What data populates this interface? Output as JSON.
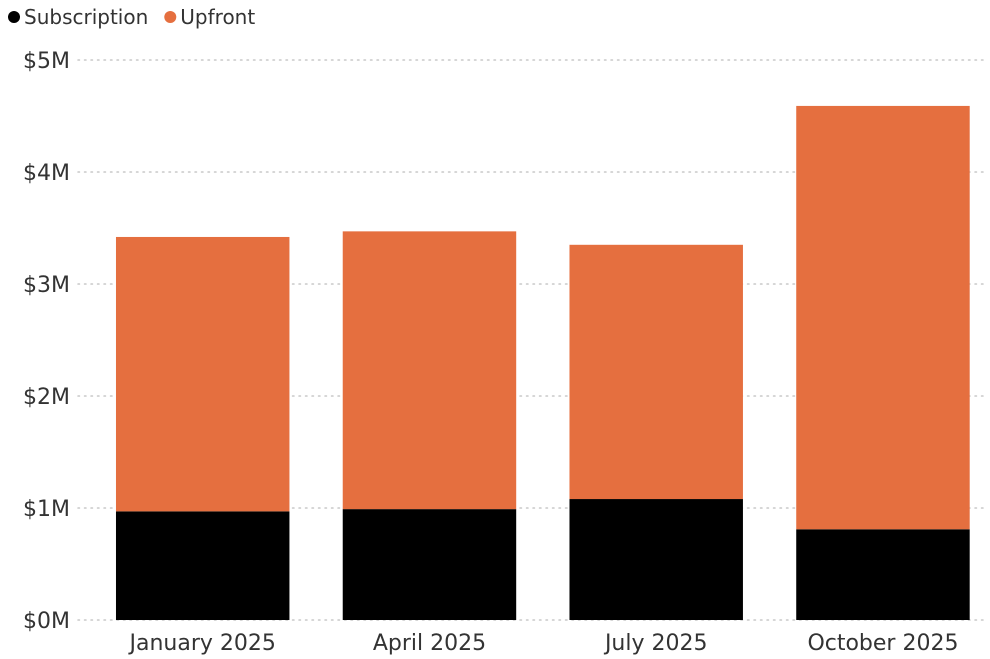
{
  "chart_data": {
    "type": "bar",
    "stacked": true,
    "categories": [
      "January 2025",
      "April 2025",
      "July 2025",
      "October 2025"
    ],
    "series": [
      {
        "name": "Subscription",
        "color": "#000000",
        "values": [
          0.97,
          0.99,
          1.08,
          0.81
        ]
      },
      {
        "name": "Upfront",
        "color": "#E56F3F",
        "values": [
          2.45,
          2.48,
          2.27,
          3.78
        ]
      }
    ],
    "y_ticks": [
      "$0M",
      "$1M",
      "$2M",
      "$3M",
      "$4M",
      "$5M"
    ],
    "ylim": [
      0,
      5
    ],
    "grid": true,
    "legend_position": "top-left",
    "title": "",
    "xlabel": "",
    "ylabel": ""
  }
}
